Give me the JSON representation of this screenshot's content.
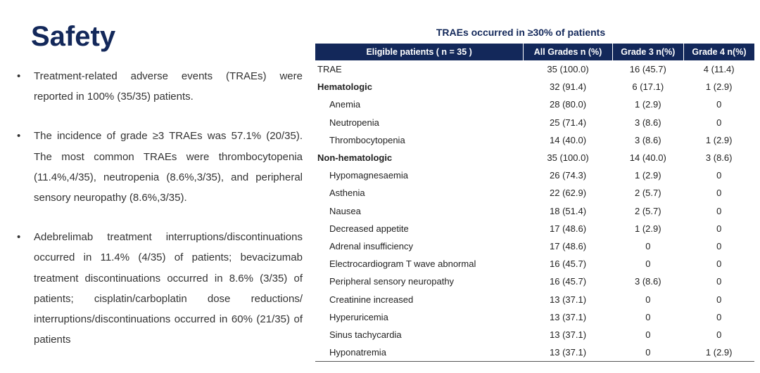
{
  "title": "Safety",
  "bullets": [
    "Treatment-related adverse events (TRAEs) were reported in 100% (35/35) patients.",
    "The incidence of grade ≥3 TRAEs was 57.1% (20/35). The most common TRAEs were thrombocytopenia (11.4%,4/35), neutropenia (8.6%,3/35), and peripheral sensory neuropathy (8.6%,3/35).",
    "Adebrelimab treatment interruptions/discontinuations occurred in 11.4% (4/35) of patients; bevacizumab treatment discontinuations occurred in 8.6% (3/35) of patients; cisplatin/carboplatin dose reductions/ interruptions/discontinuations occurred in 60% (21/35) of patients"
  ],
  "table": {
    "title": "TRAEs occurred in ≥30% of patients",
    "columns": [
      "Eligible patients ( n = 35 )",
      "All Grades  n (%)",
      "Grade 3   n(%)",
      "Grade 4  n(%)"
    ],
    "rows": [
      [
        "TRAE",
        "35 (100.0)",
        "16 (45.7)",
        "4 (11.4)"
      ],
      [
        "Hematologic",
        "32 (91.4)",
        "6 (17.1)",
        "1 (2.9)"
      ],
      [
        "Anemia",
        "28 (80.0)",
        "1 (2.9)",
        "0"
      ],
      [
        "Neutropenia",
        "25 (71.4)",
        "3 (8.6)",
        "0"
      ],
      [
        "Thrombocytopenia",
        "14 (40.0)",
        "3 (8.6)",
        "1 (2.9)"
      ],
      [
        "Non-hematologic",
        "35 (100.0)",
        "14 (40.0)",
        "3 (8.6)"
      ],
      [
        "Hypomagnesaemia",
        "26 (74.3)",
        "1 (2.9)",
        "0"
      ],
      [
        "Asthenia",
        "22 (62.9)",
        "2 (5.7)",
        "0"
      ],
      [
        "Nausea",
        "18 (51.4)",
        "2 (5.7)",
        "0"
      ],
      [
        "Decreased appetite",
        "17 (48.6)",
        "1 (2.9)",
        "0"
      ],
      [
        "Adrenal insufficiency",
        "17 (48.6)",
        "0",
        "0"
      ],
      [
        "Electrocardiogram T wave abnormal",
        "16 (45.7)",
        "0",
        "0"
      ],
      [
        "Peripheral sensory neuropathy",
        "16 (45.7)",
        "3 (8.6)",
        "0"
      ],
      [
        "Creatinine increased",
        "13 (37.1)",
        "0",
        "0"
      ],
      [
        "Hyperuricemia",
        "13 (37.1)",
        "0",
        "0"
      ],
      [
        "Sinus tachycardia",
        "13 (37.1)",
        "0",
        "0"
      ],
      [
        "Hyponatremia",
        "13 (37.1)",
        "0",
        "1 (2.9)"
      ]
    ]
  }
}
